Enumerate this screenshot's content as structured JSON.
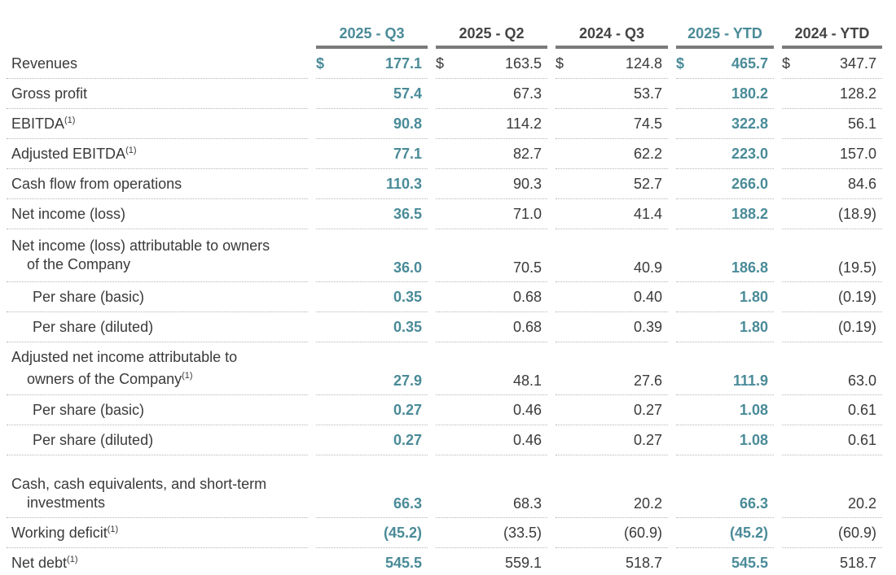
{
  "table": {
    "columns": [
      "2025 - Q3",
      "2025 - Q2",
      "2024 - Q3",
      "2025 - YTD",
      "2024 - YTD"
    ],
    "highlight_columns": [
      0,
      3
    ],
    "highlight_color": "#4a8b98",
    "sections": [
      [
        {
          "label": [
            "Revenues"
          ],
          "currency": "$",
          "values": [
            "177.1",
            "163.5",
            "124.8",
            "465.7",
            "347.7"
          ]
        },
        {
          "label": [
            "Gross profit"
          ],
          "values": [
            "57.4",
            "67.3",
            "53.7",
            "180.2",
            "128.2"
          ]
        },
        {
          "label": [
            "EBITDA"
          ],
          "note": "(1)",
          "values": [
            "90.8",
            "114.2",
            "74.5",
            "322.8",
            "56.1"
          ]
        },
        {
          "label": [
            "Adjusted EBITDA"
          ],
          "note": "(1)",
          "values": [
            "77.1",
            "82.7",
            "62.2",
            "223.0",
            "157.0"
          ]
        },
        {
          "label": [
            "Cash flow from operations"
          ],
          "values": [
            "110.3",
            "90.3",
            "52.7",
            "266.0",
            "84.6"
          ]
        },
        {
          "label": [
            "Net income (loss)"
          ],
          "values": [
            "36.5",
            "71.0",
            "41.4",
            "188.2",
            "(18.9)"
          ]
        },
        {
          "label": [
            "Net income (loss) attributable to owners",
            "of the Company"
          ],
          "values": [
            "36.0",
            "70.5",
            "40.9",
            "186.8",
            "(19.5)"
          ],
          "per_share": [
            {
              "label": [
                "Per share (basic)"
              ],
              "values": [
                "0.35",
                "0.68",
                "0.40",
                "1.80",
                "(0.19)"
              ]
            },
            {
              "label": [
                "Per share (diluted)"
              ],
              "values": [
                "0.35",
                "0.68",
                "0.39",
                "1.80",
                "(0.19)"
              ]
            }
          ]
        },
        {
          "label": [
            "Adjusted net income attributable to",
            "owners of the Company"
          ],
          "note": "(1)",
          "values": [
            "27.9",
            "48.1",
            "27.6",
            "111.9",
            "63.0"
          ],
          "per_share": [
            {
              "label": [
                "Per share (basic)"
              ],
              "values": [
                "0.27",
                "0.46",
                "0.27",
                "1.08",
                "0.61"
              ]
            },
            {
              "label": [
                "Per share (diluted)"
              ],
              "values": [
                "0.27",
                "0.46",
                "0.27",
                "1.08",
                "0.61"
              ]
            }
          ]
        }
      ],
      [
        {
          "label": [
            "Cash, cash equivalents, and short-term",
            "investments"
          ],
          "values": [
            "66.3",
            "68.3",
            "20.2",
            "66.3",
            "20.2"
          ]
        },
        {
          "label": [
            "Working deficit"
          ],
          "note": "(1)",
          "values": [
            "(45.2)",
            "(33.5)",
            "(60.9)",
            "(45.2)",
            "(60.9)"
          ]
        },
        {
          "label": [
            "Net debt"
          ],
          "note": "(1)",
          "values": [
            "545.5",
            "559.1",
            "518.7",
            "545.5",
            "518.7"
          ]
        }
      ]
    ]
  }
}
